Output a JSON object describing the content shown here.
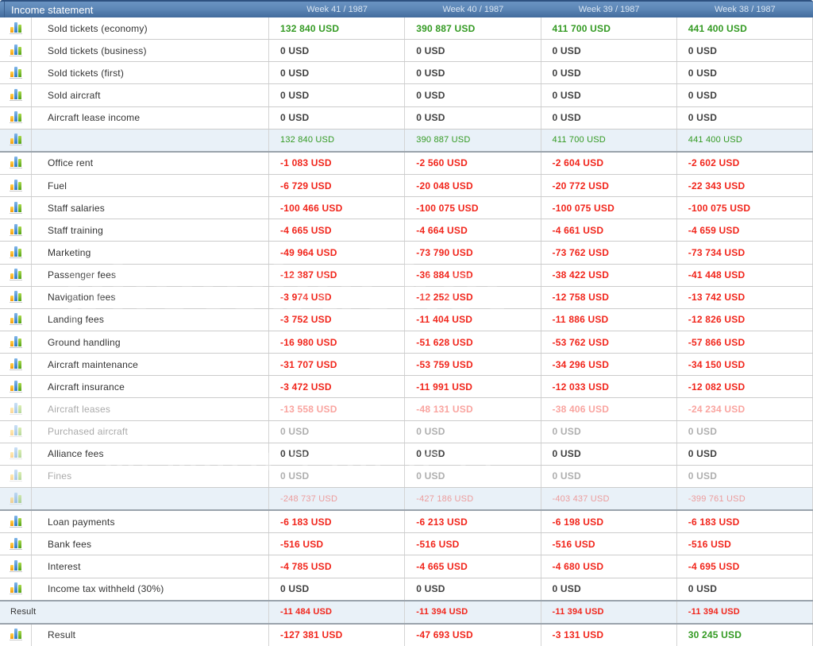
{
  "header": {
    "title": "Income statement",
    "columns": [
      "Week 41 / 1987",
      "Week 40 / 1987",
      "Week 39 / 1987",
      "Week 38 / 1987"
    ]
  },
  "colors": {
    "positive": "#339a22",
    "negative": "#f1251b",
    "neutral": "#3f3f3f",
    "header_top": "#6a93c2",
    "header_bottom": "#426b9c",
    "subtotal_bg": "#e9f1f8"
  },
  "watermark": {
    "line1": "photobucket",
    "line2": "memories for less!"
  },
  "table": {
    "rows": [
      {
        "icon": true,
        "label": "Sold tickets (economy)",
        "values": [
          "132 840 USD",
          "390 887 USD",
          "411 700 USD",
          "441 400 USD"
        ]
      },
      {
        "icon": true,
        "label": "Sold tickets (business)",
        "values": [
          "0 USD",
          "0 USD",
          "0 USD",
          "0 USD"
        ]
      },
      {
        "icon": true,
        "label": "Sold tickets (first)",
        "values": [
          "0 USD",
          "0 USD",
          "0 USD",
          "0 USD"
        ]
      },
      {
        "icon": true,
        "label": "Sold aircraft",
        "values": [
          "0 USD",
          "0 USD",
          "0 USD",
          "0 USD"
        ]
      },
      {
        "icon": true,
        "label": "Aircraft lease income",
        "values": [
          "0 USD",
          "0 USD",
          "0 USD",
          "0 USD"
        ]
      },
      {
        "icon": true,
        "type": "subtotal",
        "label": "",
        "values": [
          "132 840 USD",
          "390 887 USD",
          "411 700 USD",
          "441 400 USD"
        ]
      },
      {
        "icon": true,
        "label": "Office rent",
        "section_start": true,
        "values": [
          "-1 083 USD",
          "-2 560 USD",
          "-2 604 USD",
          "-2 602 USD"
        ]
      },
      {
        "icon": true,
        "label": "Fuel",
        "values": [
          "-6 729 USD",
          "-20 048 USD",
          "-20 772 USD",
          "-22 343 USD"
        ]
      },
      {
        "icon": true,
        "label": "Staff salaries",
        "values": [
          "-100 466 USD",
          "-100 075 USD",
          "-100 075 USD",
          "-100 075 USD"
        ]
      },
      {
        "icon": true,
        "label": "Staff training",
        "values": [
          "-4 665 USD",
          "-4 664 USD",
          "-4 661 USD",
          "-4 659 USD"
        ]
      },
      {
        "icon": true,
        "label": "Marketing",
        "values": [
          "-49 964 USD",
          "-73 790 USD",
          "-73 762 USD",
          "-73 734 USD"
        ]
      },
      {
        "icon": true,
        "label": "Passenger fees",
        "values": [
          "-12 387 USD",
          "-36 884 USD",
          "-38 422 USD",
          "-41 448 USD"
        ]
      },
      {
        "icon": true,
        "label": "Navigation fees",
        "values": [
          "-3 974 USD",
          "-12 252 USD",
          "-12 758 USD",
          "-13 742 USD"
        ]
      },
      {
        "icon": true,
        "label": "Landing fees",
        "values": [
          "-3 752 USD",
          "-11 404 USD",
          "-11 886 USD",
          "-12 826 USD"
        ]
      },
      {
        "icon": true,
        "label": "Ground handling",
        "values": [
          "-16 980 USD",
          "-51 628 USD",
          "-53 762 USD",
          "-57 866 USD"
        ]
      },
      {
        "icon": true,
        "label": "Aircraft maintenance",
        "values": [
          "-31 707 USD",
          "-53 759 USD",
          "-34 296 USD",
          "-34 150 USD"
        ]
      },
      {
        "icon": true,
        "label": "Aircraft insurance",
        "values": [
          "-3 472 USD",
          "-11 991 USD",
          "-12 033 USD",
          "-12 082 USD"
        ]
      },
      {
        "icon": true,
        "label": "Aircraft leases",
        "faded": true,
        "values": [
          "-13 558 USD",
          "-48 131 USD",
          "-38 406 USD",
          "-24 234 USD"
        ]
      },
      {
        "icon": true,
        "label": "Purchased aircraft",
        "faded": true,
        "values": [
          "0 USD",
          "0 USD",
          "0 USD",
          "0 USD"
        ]
      },
      {
        "icon": true,
        "label": "Alliance fees",
        "icon_faded": true,
        "values": [
          "0 USD",
          "0 USD",
          "0 USD",
          "0 USD"
        ]
      },
      {
        "icon": true,
        "label": "Fines",
        "faded": true,
        "values": [
          "0 USD",
          "0 USD",
          "0 USD",
          "0 USD"
        ]
      },
      {
        "icon": true,
        "type": "subtotal",
        "label": "",
        "faded": true,
        "values": [
          "-248 737 USD",
          "-427 186 USD",
          "-403 437 USD",
          "-399 761 USD"
        ]
      },
      {
        "icon": true,
        "label": "Loan payments",
        "section_start": true,
        "values": [
          "-6 183 USD",
          "-6 213 USD",
          "-6 198 USD",
          "-6 183 USD"
        ]
      },
      {
        "icon": true,
        "label": "Bank fees",
        "values": [
          "-516 USD",
          "-516 USD",
          "-516 USD",
          "-516 USD"
        ]
      },
      {
        "icon": true,
        "label": "Interest",
        "values": [
          "-4 785 USD",
          "-4 665 USD",
          "-4 680 USD",
          "-4 695 USD"
        ]
      },
      {
        "icon": true,
        "label": "Income tax withheld (30%)",
        "values": [
          "0 USD",
          "0 USD",
          "0 USD",
          "0 USD"
        ]
      },
      {
        "icon": false,
        "type": "result",
        "label": "Result",
        "section_start": true,
        "values": [
          "-11 484 USD",
          "-11 394 USD",
          "-11 394 USD",
          "-11 394 USD"
        ]
      },
      {
        "icon": true,
        "label": "Result",
        "section_start": true,
        "values": [
          "-127 381 USD",
          "-47 693 USD",
          "-3 131 USD",
          "30 245 USD"
        ]
      }
    ]
  }
}
